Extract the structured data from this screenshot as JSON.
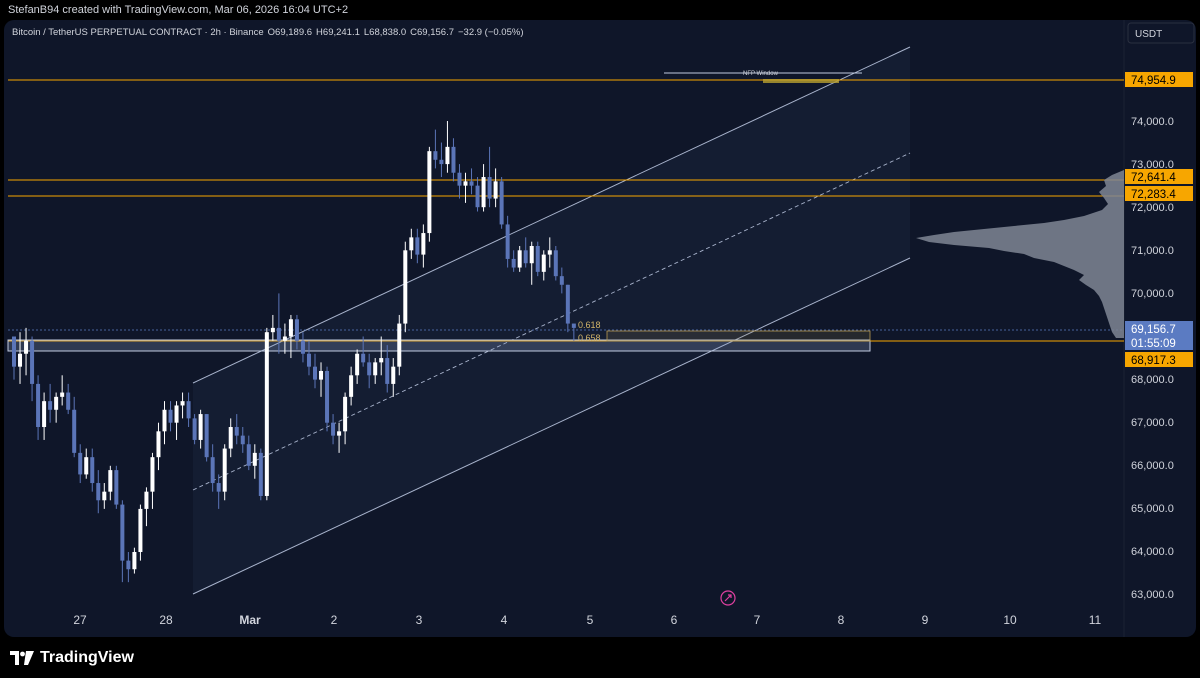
{
  "header": {
    "created": "StefanB94 created with TradingView.com, Mar 06, 2026 16:04 UTC+2"
  },
  "chart_info": {
    "symbol": "Bitcoin / TetherUS PERPETUAL CONTRACT · 2h · Binance",
    "open": "O69,189.6",
    "high": "H69,241.1",
    "low": "L68,838.0",
    "close": "C69,156.7",
    "change": "−32.9 (−0.05%)",
    "currency": "USDT"
  },
  "chart_data": {
    "type": "candlestick",
    "y_ticks": [
      "74,000.0",
      "73,000.0",
      "72,000.0",
      "71,000.0",
      "70,000.0",
      "68,000.0",
      "67,000.0",
      "66,000.0",
      "65,000.0",
      "64,000.0",
      "63,000.0"
    ],
    "x_ticks": [
      "27",
      "28",
      "Mar",
      "2",
      "3",
      "4",
      "5",
      "6",
      "7",
      "8",
      "9",
      "10",
      "11"
    ],
    "price_labels": [
      {
        "text": "74,954.9",
        "color": "#f7a600"
      },
      {
        "text": "72,641.4",
        "color": "#f7a600"
      },
      {
        "text": "72,283.4",
        "color": "#f7a600"
      },
      {
        "text": "69,156.7",
        "color": "#5b7bc2"
      },
      {
        "text": "01:55:09",
        "color": "#5b7bc2"
      },
      {
        "text": "68,917.3",
        "color": "#f7a600"
      }
    ],
    "annotations": {
      "nfp_window": "NFP Window",
      "fib_618": "0.618",
      "fib_658": "0.658"
    },
    "candles": [
      [
        69.0,
        69.0,
        68.0,
        68.3
      ],
      [
        68.3,
        69.1,
        67.9,
        68.6
      ],
      [
        68.6,
        69.2,
        68.1,
        68.9
      ],
      [
        68.9,
        69.0,
        67.5,
        67.9
      ],
      [
        67.9,
        68.1,
        66.6,
        66.9
      ],
      [
        66.9,
        67.7,
        66.6,
        67.5
      ],
      [
        67.5,
        67.9,
        67.0,
        67.3
      ],
      [
        67.3,
        67.7,
        67.0,
        67.6
      ],
      [
        67.6,
        68.1,
        67.4,
        67.7
      ],
      [
        67.7,
        67.9,
        67.2,
        67.3
      ],
      [
        67.3,
        67.6,
        66.2,
        66.3
      ],
      [
        66.3,
        66.5,
        65.6,
        65.8
      ],
      [
        65.8,
        66.4,
        65.7,
        66.2
      ],
      [
        66.2,
        66.4,
        65.4,
        65.6
      ],
      [
        65.6,
        65.9,
        64.9,
        65.2
      ],
      [
        65.2,
        65.6,
        65.0,
        65.4
      ],
      [
        65.4,
        66.0,
        65.2,
        65.9
      ],
      [
        65.9,
        66.0,
        65.0,
        65.1
      ],
      [
        65.1,
        65.2,
        63.3,
        63.8
      ],
      [
        63.8,
        64.0,
        63.3,
        63.6
      ],
      [
        63.6,
        64.1,
        63.5,
        64.0
      ],
      [
        64.0,
        65.1,
        63.8,
        65.0
      ],
      [
        65.0,
        65.5,
        64.6,
        65.4
      ],
      [
        65.4,
        66.3,
        65.0,
        66.2
      ],
      [
        66.2,
        67.0,
        65.9,
        66.8
      ],
      [
        66.8,
        67.5,
        66.5,
        67.3
      ],
      [
        67.3,
        67.5,
        66.8,
        67.0
      ],
      [
        67.0,
        67.5,
        66.6,
        67.4
      ],
      [
        67.4,
        67.7,
        67.1,
        67.5
      ],
      [
        67.5,
        67.7,
        66.9,
        67.1
      ],
      [
        67.1,
        67.2,
        66.5,
        66.6
      ],
      [
        66.6,
        67.3,
        66.4,
        67.2
      ],
      [
        67.2,
        67.2,
        66.1,
        66.2
      ],
      [
        66.2,
        66.5,
        65.4,
        65.6
      ],
      [
        65.6,
        65.8,
        65.0,
        65.4
      ],
      [
        65.4,
        66.5,
        65.2,
        66.4
      ],
      [
        66.4,
        67.1,
        66.2,
        66.9
      ],
      [
        66.9,
        67.2,
        66.5,
        66.7
      ],
      [
        66.7,
        66.9,
        66.3,
        66.5
      ],
      [
        66.5,
        66.7,
        65.9,
        66.0
      ],
      [
        66.0,
        66.5,
        65.7,
        66.3
      ],
      [
        66.3,
        66.4,
        65.2,
        65.3
      ],
      [
        65.3,
        69.2,
        65.2,
        69.1
      ],
      [
        69.1,
        69.5,
        68.9,
        69.2
      ],
      [
        69.2,
        70.0,
        68.6,
        68.9
      ],
      [
        68.9,
        69.3,
        68.6,
        69.0
      ],
      [
        69.0,
        69.5,
        68.5,
        69.4
      ],
      [
        69.4,
        69.5,
        68.7,
        68.9
      ],
      [
        68.9,
        69.1,
        68.4,
        68.6
      ],
      [
        68.6,
        68.9,
        68.1,
        68.3
      ],
      [
        68.3,
        68.6,
        67.8,
        68.0
      ],
      [
        68.0,
        68.4,
        67.6,
        68.2
      ],
      [
        68.2,
        68.3,
        66.8,
        67.0
      ],
      [
        67.0,
        67.2,
        66.5,
        66.7
      ],
      [
        66.7,
        67.0,
        66.3,
        66.8
      ],
      [
        66.8,
        67.7,
        66.5,
        67.6
      ],
      [
        67.6,
        68.3,
        67.4,
        68.1
      ],
      [
        68.1,
        68.7,
        67.9,
        68.6
      ],
      [
        68.6,
        69.0,
        68.3,
        68.4
      ],
      [
        68.4,
        68.6,
        67.8,
        68.1
      ],
      [
        68.1,
        68.5,
        67.9,
        68.4
      ],
      [
        68.4,
        69.0,
        68.1,
        68.5
      ],
      [
        68.5,
        68.8,
        67.7,
        67.9
      ],
      [
        67.9,
        68.5,
        67.6,
        68.3
      ],
      [
        68.3,
        69.5,
        68.1,
        69.3
      ],
      [
        69.3,
        71.2,
        69.1,
        71.0
      ],
      [
        71.0,
        71.5,
        70.8,
        71.3
      ],
      [
        71.3,
        71.5,
        70.7,
        70.9
      ],
      [
        70.9,
        71.6,
        70.6,
        71.4
      ],
      [
        71.4,
        73.4,
        71.2,
        73.3
      ],
      [
        73.3,
        73.8,
        72.9,
        73.1
      ],
      [
        73.1,
        73.5,
        72.7,
        73.0
      ],
      [
        73.0,
        74.0,
        72.8,
        73.4
      ],
      [
        73.4,
        73.6,
        72.6,
        72.8
      ],
      [
        72.8,
        73.0,
        72.2,
        72.5
      ],
      [
        72.5,
        72.8,
        72.1,
        72.6
      ],
      [
        72.6,
        72.9,
        72.3,
        72.5
      ],
      [
        72.5,
        72.7,
        71.9,
        72.0
      ],
      [
        72.0,
        73.0,
        71.9,
        72.7
      ],
      [
        72.7,
        73.4,
        72.0,
        72.2
      ],
      [
        72.2,
        72.9,
        72.0,
        72.6
      ],
      [
        72.6,
        72.7,
        71.5,
        71.6
      ],
      [
        71.6,
        71.8,
        70.6,
        70.8
      ],
      [
        70.8,
        71.0,
        70.5,
        70.6
      ],
      [
        70.6,
        71.1,
        70.5,
        71.0
      ],
      [
        71.0,
        71.3,
        70.6,
        70.7
      ],
      [
        70.7,
        71.2,
        70.2,
        71.1
      ],
      [
        71.1,
        71.2,
        70.4,
        70.5
      ],
      [
        70.5,
        71.0,
        70.3,
        70.9
      ],
      [
        70.9,
        71.3,
        70.6,
        71.0
      ],
      [
        71.0,
        71.1,
        70.3,
        70.4
      ],
      [
        70.4,
        70.6,
        70.0,
        70.2
      ],
      [
        70.2,
        70.2,
        69.1,
        69.3
      ],
      [
        69.3,
        69.3,
        68.9,
        69.2
      ]
    ]
  }
}
